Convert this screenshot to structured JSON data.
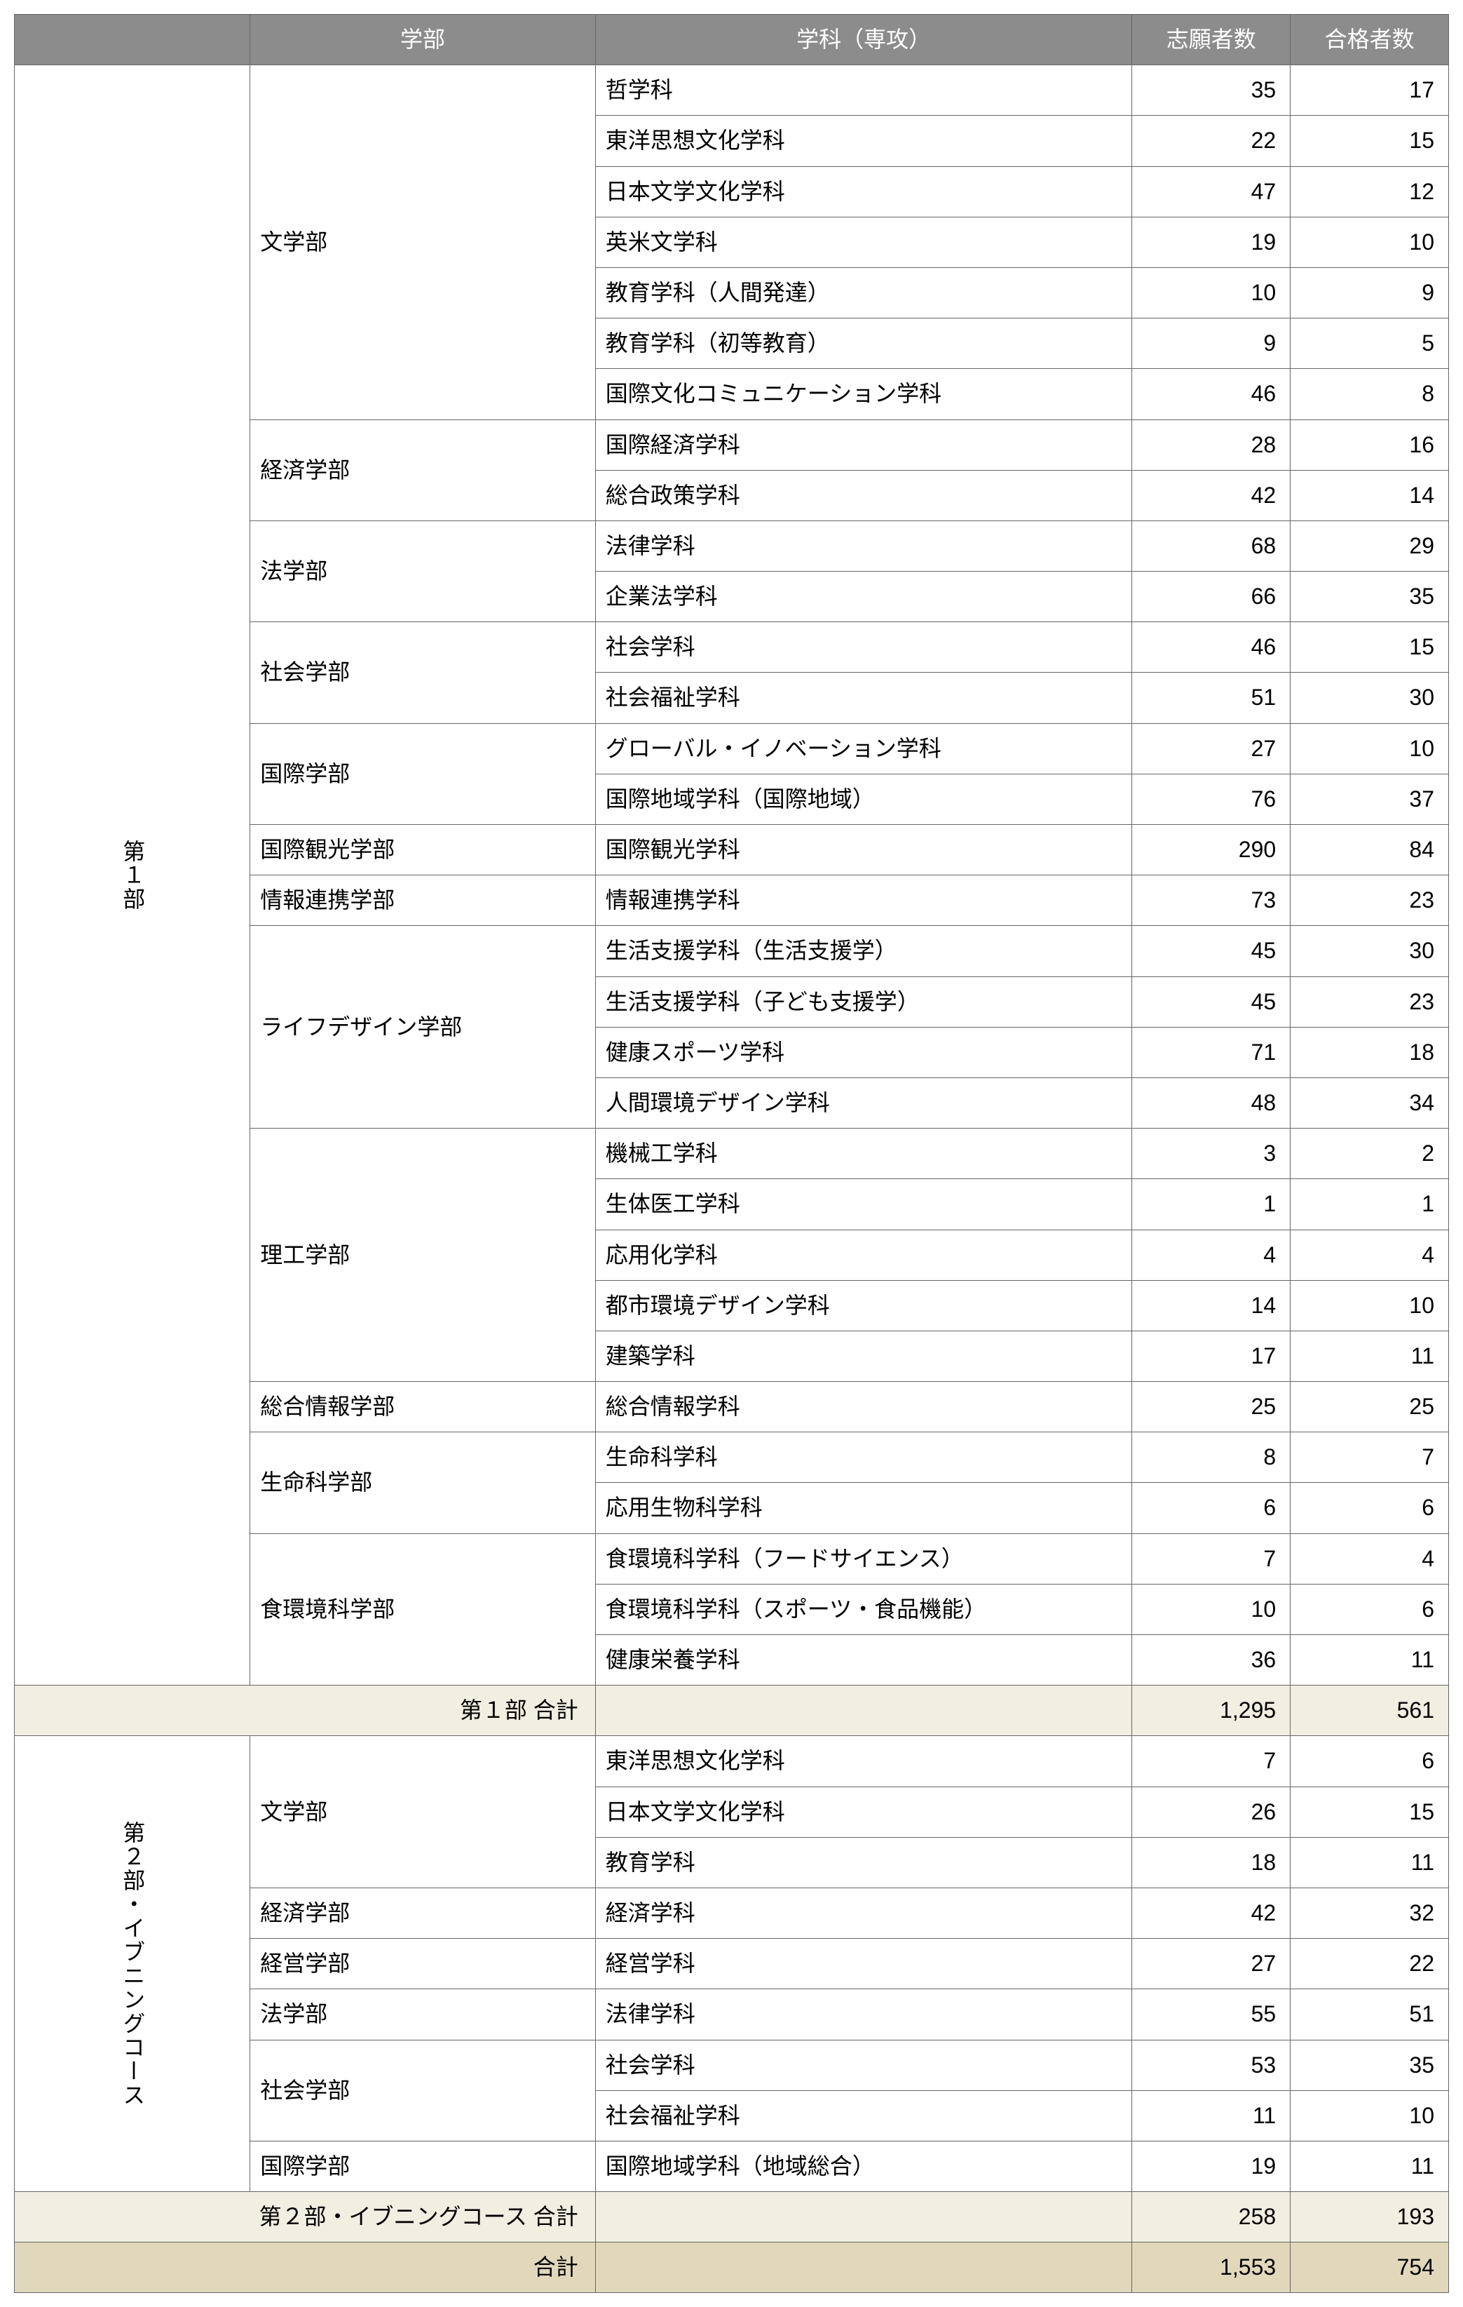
{
  "colors": {
    "header_bg": "#8c8c8c",
    "header_fg": "#ffffff",
    "subtotal_bg": "#f1eee2",
    "grandtotal_bg": "#e1d8bc",
    "border": "#666666"
  },
  "headers": {
    "corner": "",
    "faculty": "学部",
    "department": "学科（専攻）",
    "applicants": "志願者数",
    "accepted": "合格者数"
  },
  "groups": [
    {
      "name": "第１部",
      "faculties": [
        {
          "name": "文学部",
          "departments": [
            {
              "name": "哲学科",
              "applicants": 35,
              "accepted": 17
            },
            {
              "name": "東洋思想文化学科",
              "applicants": 22,
              "accepted": 15
            },
            {
              "name": "日本文学文化学科",
              "applicants": 47,
              "accepted": 12
            },
            {
              "name": "英米文学科",
              "applicants": 19,
              "accepted": 10
            },
            {
              "name": "教育学科（人間発達）",
              "applicants": 10,
              "accepted": 9
            },
            {
              "name": "教育学科（初等教育）",
              "applicants": 9,
              "accepted": 5
            },
            {
              "name": "国際文化コミュニケーション学科",
              "applicants": 46,
              "accepted": 8
            }
          ]
        },
        {
          "name": "経済学部",
          "departments": [
            {
              "name": "国際経済学科",
              "applicants": 28,
              "accepted": 16
            },
            {
              "name": "総合政策学科",
              "applicants": 42,
              "accepted": 14
            }
          ]
        },
        {
          "name": "法学部",
          "departments": [
            {
              "name": "法律学科",
              "applicants": 68,
              "accepted": 29
            },
            {
              "name": "企業法学科",
              "applicants": 66,
              "accepted": 35
            }
          ]
        },
        {
          "name": "社会学部",
          "departments": [
            {
              "name": "社会学科",
              "applicants": 46,
              "accepted": 15
            },
            {
              "name": "社会福祉学科",
              "applicants": 51,
              "accepted": 30
            }
          ]
        },
        {
          "name": "国際学部",
          "departments": [
            {
              "name": "グローバル・イノベーション学科",
              "applicants": 27,
              "accepted": 10
            },
            {
              "name": "国際地域学科（国際地域）",
              "applicants": 76,
              "accepted": 37
            }
          ]
        },
        {
          "name": "国際観光学部",
          "departments": [
            {
              "name": "国際観光学科",
              "applicants": 290,
              "accepted": 84
            }
          ]
        },
        {
          "name": "情報連携学部",
          "departments": [
            {
              "name": "情報連携学科",
              "applicants": 73,
              "accepted": 23
            }
          ]
        },
        {
          "name": "ライフデザイン学部",
          "departments": [
            {
              "name": "生活支援学科（生活支援学）",
              "applicants": 45,
              "accepted": 30
            },
            {
              "name": "生活支援学科（子ども支援学）",
              "applicants": 45,
              "accepted": 23
            },
            {
              "name": "健康スポーツ学科",
              "applicants": 71,
              "accepted": 18
            },
            {
              "name": "人間環境デザイン学科",
              "applicants": 48,
              "accepted": 34
            }
          ]
        },
        {
          "name": "理工学部",
          "departments": [
            {
              "name": "機械工学科",
              "applicants": 3,
              "accepted": 2
            },
            {
              "name": "生体医工学科",
              "applicants": 1,
              "accepted": 1
            },
            {
              "name": "応用化学科",
              "applicants": 4,
              "accepted": 4
            },
            {
              "name": "都市環境デザイン学科",
              "applicants": 14,
              "accepted": 10
            },
            {
              "name": "建築学科",
              "applicants": 17,
              "accepted": 11
            }
          ]
        },
        {
          "name": "総合情報学部",
          "departments": [
            {
              "name": "総合情報学科",
              "applicants": 25,
              "accepted": 25
            }
          ]
        },
        {
          "name": "生命科学部",
          "departments": [
            {
              "name": "生命科学科",
              "applicants": 8,
              "accepted": 7
            },
            {
              "name": "応用生物科学科",
              "applicants": 6,
              "accepted": 6
            }
          ]
        },
        {
          "name": "食環境科学部",
          "departments": [
            {
              "name": "食環境科学科（フードサイエンス）",
              "applicants": 7,
              "accepted": 4
            },
            {
              "name": "食環境科学科（スポーツ・食品機能）",
              "applicants": 10,
              "accepted": 6
            },
            {
              "name": "健康栄養学科",
              "applicants": 36,
              "accepted": 11
            }
          ]
        }
      ],
      "subtotal": {
        "label": "第１部 合計",
        "applicants": "1,295",
        "accepted": "561"
      }
    },
    {
      "name": "第２部・イブニングコース",
      "faculties": [
        {
          "name": "文学部",
          "departments": [
            {
              "name": "東洋思想文化学科",
              "applicants": 7,
              "accepted": 6
            },
            {
              "name": "日本文学文化学科",
              "applicants": 26,
              "accepted": 15
            },
            {
              "name": "教育学科",
              "applicants": 18,
              "accepted": 11
            }
          ]
        },
        {
          "name": "経済学部",
          "departments": [
            {
              "name": "経済学科",
              "applicants": 42,
              "accepted": 32
            }
          ]
        },
        {
          "name": "経営学部",
          "departments": [
            {
              "name": "経営学科",
              "applicants": 27,
              "accepted": 22
            }
          ]
        },
        {
          "name": "法学部",
          "departments": [
            {
              "name": "法律学科",
              "applicants": 55,
              "accepted": 51
            }
          ]
        },
        {
          "name": "社会学部",
          "departments": [
            {
              "name": "社会学科",
              "applicants": 53,
              "accepted": 35
            },
            {
              "name": "社会福祉学科",
              "applicants": 11,
              "accepted": 10
            }
          ]
        },
        {
          "name": "国際学部",
          "departments": [
            {
              "name": "国際地域学科（地域総合）",
              "applicants": 19,
              "accepted": 11
            }
          ]
        }
      ],
      "subtotal": {
        "label": "第２部・イブニングコース 合計",
        "applicants": "258",
        "accepted": "193"
      }
    }
  ],
  "grandtotal": {
    "label": "合計",
    "applicants": "1,553",
    "accepted": "754"
  }
}
